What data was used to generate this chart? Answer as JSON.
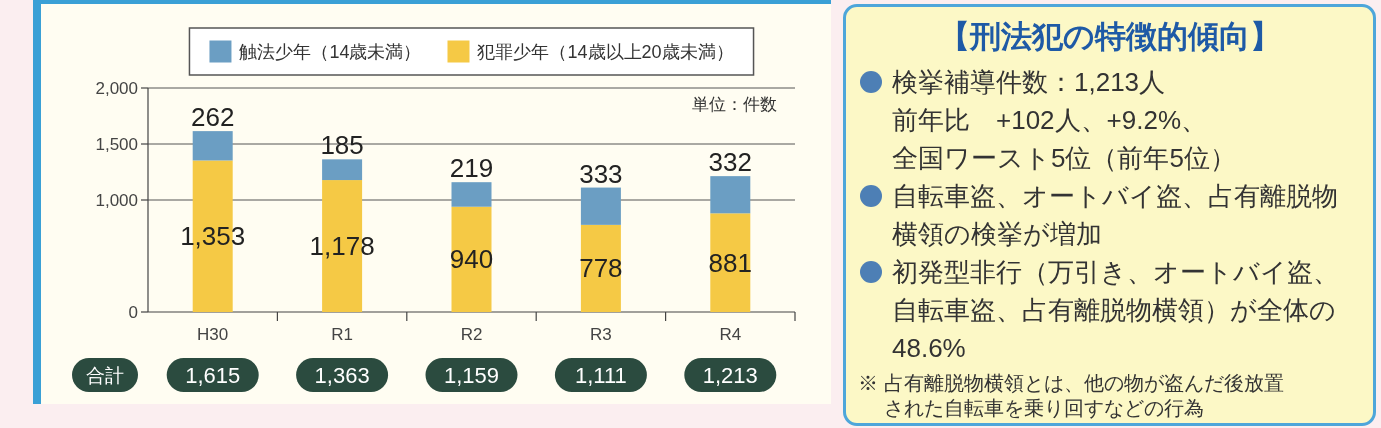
{
  "chart_data": [
    {
      "type": "bar",
      "categories": [
        "H30",
        "R1",
        "R2",
        "R3",
        "R4"
      ],
      "stacked": true,
      "legend": "top",
      "grid": "y",
      "ylim": [
        0,
        2000
      ],
      "yticks": [
        0,
        {
          "value": 1000,
          "label": "1,000"
        },
        {
          "value": 1500,
          "label": "1,500"
        },
        {
          "value": 2000,
          "label": "2,000"
        }
      ],
      "series": [
        {
          "name": "犯罪少年（14歳以上20歳未満）",
          "color": "#f5c945",
          "values": [
            1353,
            1178,
            940,
            778,
            881
          ],
          "value_labels": [
            "1,353",
            "1,178",
            "940",
            "778",
            "881"
          ]
        },
        {
          "name": "触法少年（14歳未満）",
          "color": "#6b9ec3",
          "values": [
            262,
            185,
            219,
            333,
            332
          ],
          "value_labels": [
            "262",
            "185",
            "219",
            "333",
            "332"
          ]
        }
      ],
      "totals": [
        "1,615",
        "1,363",
        "1,159",
        "1,111",
        "1,213"
      ],
      "annotations": [
        "単位：件数",
        "合計"
      ]
    },
    {
      "type": "other",
      "title": "【刑法犯の特徴的傾向】",
      "annotations": [
        "検挙補導件数：1,213人",
        "前年比　+102人、+9.2%、",
        "全国ワースト5位（前年5位）",
        "自転車盗、オートバイ盗、占有離脱物横領の検挙が増加",
        "初発型非行（万引き、オートバイ盗、自転車盗、占有離脱物横領）が全体の48.6%",
        "※ 占有離脱物横領とは、他の物が盗んだ後放置された自転車を乗り回すなどの行為"
      ]
    }
  ]
}
